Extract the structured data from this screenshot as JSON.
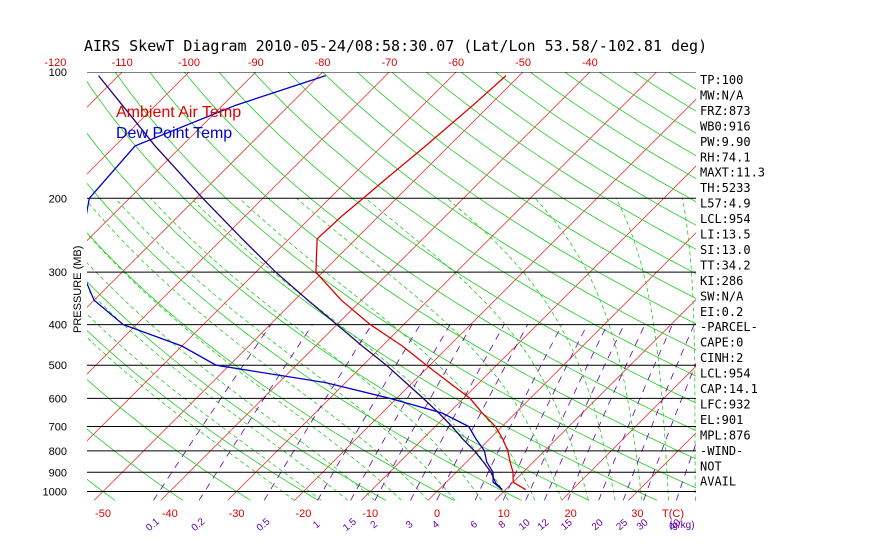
{
  "chart_data": {
    "type": "skew-t log-p diagram",
    "title": "AIRS SkewT Diagram 2010-05-24/08:58:30.07 (Lat/Lon 53.58/-102.81 deg)",
    "ylabel": "PRESSURE (MB)",
    "pressure_ticks": [
      "100",
      "200",
      "300",
      "400",
      "500",
      "600",
      "700",
      "800",
      "900",
      "1000"
    ],
    "top_temp_ticks": [
      "-120",
      "-110",
      "-100",
      "-90",
      "-80",
      "-70",
      "-60",
      "-50",
      "-40"
    ],
    "bottom_temp_ticks": [
      "-50",
      "-40",
      "-30",
      "-20",
      "-10",
      "0",
      "10",
      "20",
      "30"
    ],
    "bottom_unit_label": "T(C)",
    "mixing_ratio_labels": [
      "0.1",
      "0.2",
      "0.5",
      "1",
      "1.5",
      "2",
      "3",
      "4",
      "6",
      "8",
      "10",
      "12",
      "15",
      "20",
      "25",
      "30",
      "40"
    ],
    "mixing_ratio_unit": "(g/kg)",
    "ylim": [
      100,
      1050
    ],
    "pressure_scale": "log",
    "legend": [
      {
        "name": "Ambient Air Temp",
        "color": "#e00000"
      },
      {
        "name": "Dew Point Temp",
        "color": "#0000cc"
      }
    ],
    "series": [
      {
        "name": "Ambient Air Temp",
        "color": "#e00000",
        "points": [
          {
            "p": 102,
            "t": -52
          },
          {
            "p": 120,
            "t": -52.5
          },
          {
            "p": 150,
            "t": -53.5
          },
          {
            "p": 180,
            "t": -54.5
          },
          {
            "p": 200,
            "t": -55
          },
          {
            "p": 220,
            "t": -55.5
          },
          {
            "p": 250,
            "t": -55.8
          },
          {
            "p": 300,
            "t": -51
          },
          {
            "p": 350,
            "t": -43
          },
          {
            "p": 400,
            "t": -35
          },
          {
            "p": 450,
            "t": -27
          },
          {
            "p": 500,
            "t": -20.5
          },
          {
            "p": 550,
            "t": -14.5
          },
          {
            "p": 600,
            "t": -9
          },
          {
            "p": 650,
            "t": -5
          },
          {
            "p": 700,
            "t": -1
          },
          {
            "p": 750,
            "t": 2
          },
          {
            "p": 800,
            "t": 4.5
          },
          {
            "p": 850,
            "t": 6.5
          },
          {
            "p": 900,
            "t": 8.5
          },
          {
            "p": 950,
            "t": 10
          },
          {
            "p": 990,
            "t": 13
          }
        ]
      },
      {
        "name": "Dew Point Temp",
        "color": "#0000cc",
        "points": [
          {
            "p": 102,
            "t": -79
          },
          {
            "p": 120,
            "t": -88
          },
          {
            "p": 150,
            "t": -97
          },
          {
            "p": 200,
            "t": -96
          },
          {
            "p": 250,
            "t": -91
          },
          {
            "p": 300,
            "t": -86
          },
          {
            "p": 350,
            "t": -80
          },
          {
            "p": 400,
            "t": -72
          },
          {
            "p": 450,
            "t": -60
          },
          {
            "p": 500,
            "t": -52
          },
          {
            "p": 550,
            "t": -33
          },
          {
            "p": 600,
            "t": -21
          },
          {
            "p": 650,
            "t": -11
          },
          {
            "p": 700,
            "t": -5
          },
          {
            "p": 750,
            "t": -2
          },
          {
            "p": 800,
            "t": 1
          },
          {
            "p": 850,
            "t": 3
          },
          {
            "p": 900,
            "t": 5.5
          },
          {
            "p": 950,
            "t": 7
          },
          {
            "p": 990,
            "t": 9.5
          }
        ]
      },
      {
        "name": "Parcel",
        "color": "#220077",
        "points": [
          {
            "p": 990,
            "t": 9.5
          },
          {
            "p": 954,
            "t": 7.5
          },
          {
            "p": 900,
            "t": 5.2
          },
          {
            "p": 850,
            "t": 2.5
          },
          {
            "p": 800,
            "t": -0.5
          },
          {
            "p": 750,
            "t": -4
          },
          {
            "p": 700,
            "t": -7.5
          },
          {
            "p": 650,
            "t": -11.5
          },
          {
            "p": 600,
            "t": -16
          },
          {
            "p": 550,
            "t": -21
          },
          {
            "p": 500,
            "t": -26.5
          },
          {
            "p": 450,
            "t": -33
          },
          {
            "p": 400,
            "t": -40
          },
          {
            "p": 350,
            "t": -48
          },
          {
            "p": 300,
            "t": -57
          },
          {
            "p": 250,
            "t": -67
          },
          {
            "p": 200,
            "t": -79
          },
          {
            "p": 150,
            "t": -94
          },
          {
            "p": 120,
            "t": -105
          },
          {
            "p": 102,
            "t": -113
          }
        ]
      }
    ],
    "indices": [
      {
        "label": "TP:100"
      },
      {
        "label": "MW:N/A"
      },
      {
        "label": "FRZ:873"
      },
      {
        "label": "WB0:916"
      },
      {
        "label": "PW:9.90"
      },
      {
        "label": "RH:74.1"
      },
      {
        "label": "MAXT:11.3"
      },
      {
        "label": "TH:5233"
      },
      {
        "label": "L57:4.9"
      },
      {
        "label": "LCL:954"
      },
      {
        "label": "LI:13.5"
      },
      {
        "label": "SI:13.0"
      },
      {
        "label": "TT:34.2"
      },
      {
        "label": "KI:286"
      },
      {
        "label": "SW:N/A"
      },
      {
        "label": "EI:0.2"
      },
      {
        "label": "-PARCEL-"
      },
      {
        "label": "CAPE:0"
      },
      {
        "label": "CINH:2"
      },
      {
        "label": "LCL:954"
      },
      {
        "label": "CAP:14.1"
      },
      {
        "label": "LFC:932"
      },
      {
        "label": "EL:901"
      },
      {
        "label": "MPL:876"
      },
      {
        "label": "-WIND-"
      },
      {
        "label": "NOT"
      },
      {
        "label": "AVAIL"
      }
    ]
  }
}
